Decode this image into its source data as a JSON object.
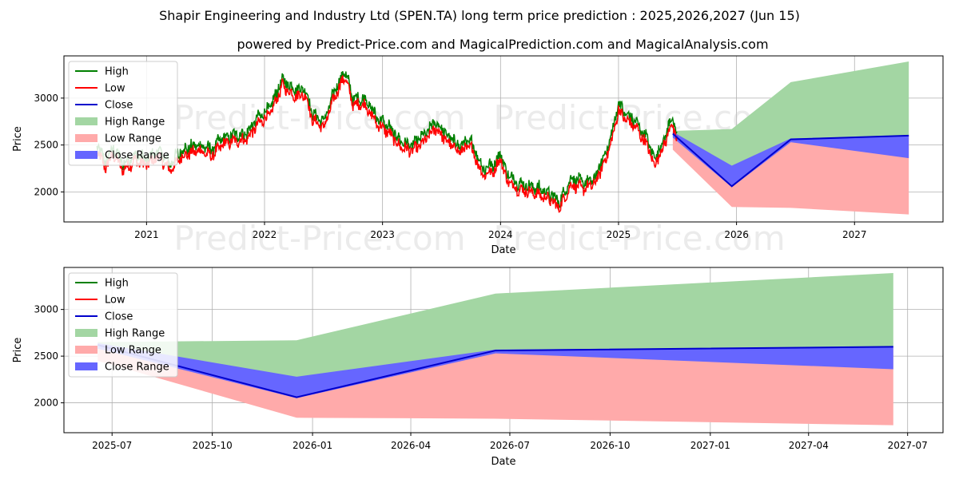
{
  "title": "Shapir Engineering and Industry Ltd (SPEN.TA) long term price prediction : 2025,2026,2027 (Jun 15)",
  "subtitle": "powered by Predict-Price.com and MagicalPrediction.com and MagicalAnalysis.com",
  "watermark": "Predict-Price.com",
  "colors": {
    "high": "#008000",
    "low": "#ff0000",
    "close": "#0000cc",
    "high_range": "#a3d6a3",
    "low_range": "#ffaaaa",
    "close_range": "#6666ff"
  },
  "legend": [
    "High",
    "Low",
    "Close",
    "High Range",
    "Low Range",
    "Close Range"
  ],
  "chart_data": [
    {
      "type": "line",
      "name": "full-history",
      "xlabel": "Date",
      "ylabel": "Price",
      "xlim": [
        2020.3,
        2027.75
      ],
      "ylim": [
        1680,
        3450
      ],
      "xticks": [
        2021,
        2022,
        2023,
        2024,
        2025,
        2026,
        2027
      ],
      "xtick_labels": [
        "2021",
        "2022",
        "2023",
        "2024",
        "2025",
        "2026",
        "2027"
      ],
      "yticks": [
        2000,
        2500,
        3000
      ],
      "ytick_labels": [
        "2000",
        "2500",
        "3000"
      ],
      "history_anchors": [
        [
          2020.58,
          2450
        ],
        [
          2020.65,
          2280
        ],
        [
          2020.72,
          2420
        ],
        [
          2020.8,
          2250
        ],
        [
          2020.9,
          2350
        ],
        [
          2021.0,
          2300
        ],
        [
          2021.1,
          2400
        ],
        [
          2021.2,
          2250
        ],
        [
          2021.3,
          2400
        ],
        [
          2021.45,
          2460
        ],
        [
          2021.55,
          2400
        ],
        [
          2021.65,
          2530
        ],
        [
          2021.75,
          2560
        ],
        [
          2021.85,
          2580
        ],
        [
          2021.95,
          2750
        ],
        [
          2022.05,
          2850
        ],
        [
          2022.15,
          3150
        ],
        [
          2022.25,
          3050
        ],
        [
          2022.35,
          3050
        ],
        [
          2022.4,
          2800
        ],
        [
          2022.5,
          2700
        ],
        [
          2022.6,
          3050
        ],
        [
          2022.68,
          3250
        ],
        [
          2022.75,
          2950
        ],
        [
          2022.85,
          2950
        ],
        [
          2022.95,
          2750
        ],
        [
          2023.05,
          2650
        ],
        [
          2023.15,
          2500
        ],
        [
          2023.25,
          2450
        ],
        [
          2023.35,
          2550
        ],
        [
          2023.45,
          2700
        ],
        [
          2023.55,
          2550
        ],
        [
          2023.65,
          2450
        ],
        [
          2023.75,
          2500
        ],
        [
          2023.85,
          2200
        ],
        [
          2023.95,
          2250
        ],
        [
          2024.0,
          2380
        ],
        [
          2024.05,
          2150
        ],
        [
          2024.15,
          2050
        ],
        [
          2024.3,
          2000
        ],
        [
          2024.4,
          1950
        ],
        [
          2024.5,
          1850
        ],
        [
          2024.6,
          2100
        ],
        [
          2024.7,
          2050
        ],
        [
          2024.8,
          2100
        ],
        [
          2024.9,
          2400
        ],
        [
          2024.95,
          2600
        ],
        [
          2025.0,
          2900
        ],
        [
          2025.05,
          2800
        ],
        [
          2025.15,
          2700
        ],
        [
          2025.25,
          2500
        ],
        [
          2025.3,
          2300
        ],
        [
          2025.38,
          2500
        ],
        [
          2025.45,
          2750
        ],
        [
          2025.5,
          2550
        ]
      ],
      "forecast": {
        "x": [
          2025.46,
          2025.96,
          2026.46,
          2027.46
        ],
        "close": [
          2620,
          2060,
          2560,
          2600
        ],
        "high_upper": [
          2650,
          2670,
          3170,
          3390
        ],
        "low_lower": [
          2450,
          1840,
          1830,
          1760
        ],
        "close_upper": [
          2640,
          2280,
          2570,
          2600
        ],
        "close_lower": [
          2580,
          2050,
          2530,
          2360
        ]
      }
    },
    {
      "type": "line",
      "name": "forecast-zoom",
      "xlabel": "Date",
      "ylabel": "Price",
      "xlim": [
        2025.375,
        2027.585
      ],
      "ylim": [
        1680,
        3450
      ],
      "xticks": [
        2025.496,
        2025.748,
        2026.0,
        2026.247,
        2026.496,
        2026.748,
        2027.0,
        2027.247,
        2027.496
      ],
      "xtick_labels": [
        "2025-07",
        "2025-10",
        "2026-01",
        "2026-04",
        "2026-07",
        "2026-10",
        "2027-01",
        "2027-04",
        "2027-07"
      ],
      "yticks": [
        2000,
        2500,
        3000
      ],
      "ytick_labels": [
        "2000",
        "2500",
        "3000"
      ],
      "forecast": {
        "x": [
          2025.46,
          2025.96,
          2026.46,
          2027.46
        ],
        "close": [
          2620,
          2060,
          2560,
          2600
        ],
        "high_upper": [
          2650,
          2670,
          3170,
          3390
        ],
        "low_lower": [
          2450,
          1840,
          1830,
          1760
        ],
        "close_upper": [
          2640,
          2280,
          2570,
          2600
        ],
        "close_lower": [
          2580,
          2050,
          2530,
          2360
        ]
      }
    }
  ]
}
